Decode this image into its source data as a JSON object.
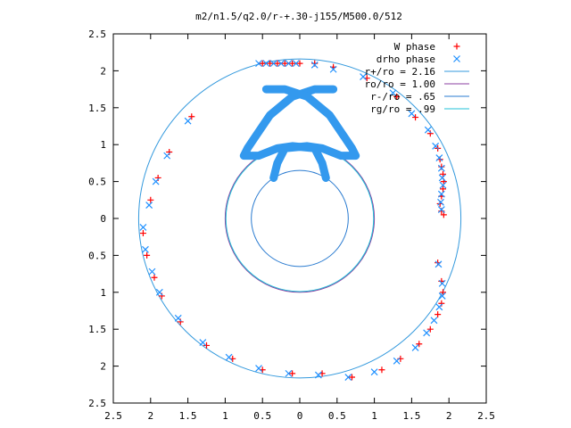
{
  "chart_data": {
    "type": "scatter",
    "title": "m2/n1.5/q2.0/r-+.30-j155/M500.0/512",
    "xlabel": "",
    "ylabel": "",
    "xlim": [
      -2.5,
      2.5
    ],
    "ylim": [
      -2.5,
      2.5
    ],
    "x_tick_labels": [
      "2.5",
      "2",
      "1.5",
      "1",
      "0.5",
      "0",
      "0.5",
      "1",
      "1.5",
      "2",
      "2.5"
    ],
    "y_tick_labels": [
      "2.5",
      "2",
      "1.5",
      "1",
      "0.5",
      "0",
      "0.5",
      "1",
      "1.5",
      "2",
      "2.5"
    ],
    "grid": false,
    "legend_position": "top-right",
    "series": [
      {
        "name": "W phase",
        "kind": "points",
        "marker": "plus",
        "color": "#ff0000",
        "points": [
          [
            -0.5,
            2.1
          ],
          [
            -0.4,
            2.1
          ],
          [
            -0.3,
            2.1
          ],
          [
            -0.2,
            2.1
          ],
          [
            -0.1,
            2.1
          ],
          [
            0.0,
            2.1
          ],
          [
            0.2,
            2.1
          ],
          [
            0.45,
            2.05
          ],
          [
            0.9,
            1.9
          ],
          [
            1.3,
            1.65
          ],
          [
            1.55,
            1.37
          ],
          [
            1.75,
            1.15
          ],
          [
            1.85,
            0.95
          ],
          [
            1.88,
            0.8
          ],
          [
            1.9,
            0.7
          ],
          [
            1.92,
            0.6
          ],
          [
            1.93,
            0.5
          ],
          [
            1.92,
            0.4
          ],
          [
            1.9,
            0.3
          ],
          [
            1.88,
            0.2
          ],
          [
            1.9,
            0.1
          ],
          [
            1.93,
            0.05
          ],
          [
            1.85,
            -0.6
          ],
          [
            1.9,
            -0.85
          ],
          [
            1.92,
            -1.0
          ],
          [
            1.9,
            -1.15
          ],
          [
            1.85,
            -1.3
          ],
          [
            1.75,
            -1.5
          ],
          [
            1.6,
            -1.7
          ],
          [
            1.35,
            -1.9
          ],
          [
            1.1,
            -2.05
          ],
          [
            0.7,
            -2.15
          ],
          [
            0.3,
            -2.1
          ],
          [
            -0.1,
            -2.1
          ],
          [
            -0.5,
            -2.05
          ],
          [
            -0.9,
            -1.9
          ],
          [
            -1.25,
            -1.72
          ],
          [
            -1.6,
            -1.4
          ],
          [
            -1.85,
            -1.05
          ],
          [
            -1.95,
            -0.8
          ],
          [
            -2.05,
            -0.5
          ],
          [
            -2.1,
            -0.2
          ],
          [
            -1.45,
            1.38
          ],
          [
            -1.75,
            0.9
          ],
          [
            -1.9,
            0.55
          ],
          [
            -2.0,
            0.25
          ]
        ]
      },
      {
        "name": "drho phase",
        "kind": "points",
        "marker": "cross",
        "color": "#1e90ff",
        "points": [
          [
            -0.55,
            2.1
          ],
          [
            -0.45,
            2.1
          ],
          [
            -0.35,
            2.1
          ],
          [
            -0.25,
            2.1
          ],
          [
            -0.15,
            2.1
          ],
          [
            -0.05,
            2.1
          ],
          [
            0.2,
            2.08
          ],
          [
            0.45,
            2.02
          ],
          [
            0.85,
            1.92
          ],
          [
            1.25,
            1.7
          ],
          [
            1.5,
            1.42
          ],
          [
            1.72,
            1.2
          ],
          [
            1.82,
            0.98
          ],
          [
            1.87,
            0.82
          ],
          [
            1.9,
            0.68
          ],
          [
            1.91,
            0.55
          ],
          [
            1.92,
            0.45
          ],
          [
            1.9,
            0.33
          ],
          [
            1.89,
            0.22
          ],
          [
            1.9,
            0.12
          ],
          [
            1.86,
            -0.62
          ],
          [
            1.91,
            -0.88
          ],
          [
            1.91,
            -1.05
          ],
          [
            1.87,
            -1.2
          ],
          [
            1.8,
            -1.38
          ],
          [
            1.7,
            -1.55
          ],
          [
            1.55,
            -1.75
          ],
          [
            1.3,
            -1.93
          ],
          [
            1.0,
            -2.08
          ],
          [
            0.65,
            -2.15
          ],
          [
            0.25,
            -2.12
          ],
          [
            -0.15,
            -2.1
          ],
          [
            -0.55,
            -2.03
          ],
          [
            -0.95,
            -1.88
          ],
          [
            -1.3,
            -1.68
          ],
          [
            -1.63,
            -1.35
          ],
          [
            -1.88,
            -1.0
          ],
          [
            -1.98,
            -0.72
          ],
          [
            -2.07,
            -0.42
          ],
          [
            -2.1,
            -0.12
          ],
          [
            -1.5,
            1.32
          ],
          [
            -1.78,
            0.85
          ],
          [
            -1.93,
            0.5
          ],
          [
            -2.02,
            0.18
          ]
        ]
      },
      {
        "name": "r+/ro = 2.16",
        "kind": "circle",
        "radius": 2.16,
        "color": "#3399dd"
      },
      {
        "name": "ro/ro = 1.00",
        "kind": "circle",
        "radius": 1.0,
        "color": "#8b3fa0"
      },
      {
        "name": "r-/ro = .65",
        "kind": "circle",
        "radius": 0.65,
        "color": "#2a7bd0"
      },
      {
        "name": "rg/ro = .99",
        "kind": "circle",
        "radius": 0.99,
        "color": "#20c0d8"
      }
    ],
    "thick_arcs": [
      {
        "color": "#3399ee",
        "points": [
          [
            0.45,
            1.75
          ],
          [
            0.2,
            1.75
          ],
          [
            -0.1,
            1.65
          ],
          [
            -0.4,
            1.4
          ],
          [
            -0.6,
            1.1
          ],
          [
            -0.7,
            0.95
          ],
          [
            -0.75,
            0.85
          ],
          [
            -0.55,
            0.85
          ],
          [
            -0.3,
            0.95
          ],
          [
            -0.1,
            0.98
          ],
          [
            0.2,
            0.95
          ],
          [
            0.3,
            0.75
          ],
          [
            0.35,
            0.55
          ]
        ]
      },
      {
        "color": "#3399ee",
        "points": [
          [
            -0.45,
            1.75
          ],
          [
            -0.2,
            1.75
          ],
          [
            0.1,
            1.65
          ],
          [
            0.4,
            1.4
          ],
          [
            0.6,
            1.1
          ],
          [
            0.7,
            0.95
          ],
          [
            0.75,
            0.85
          ],
          [
            0.55,
            0.85
          ],
          [
            0.3,
            0.95
          ],
          [
            0.1,
            0.98
          ],
          [
            -0.2,
            0.95
          ],
          [
            -0.3,
            0.75
          ],
          [
            -0.35,
            0.55
          ]
        ]
      }
    ]
  }
}
